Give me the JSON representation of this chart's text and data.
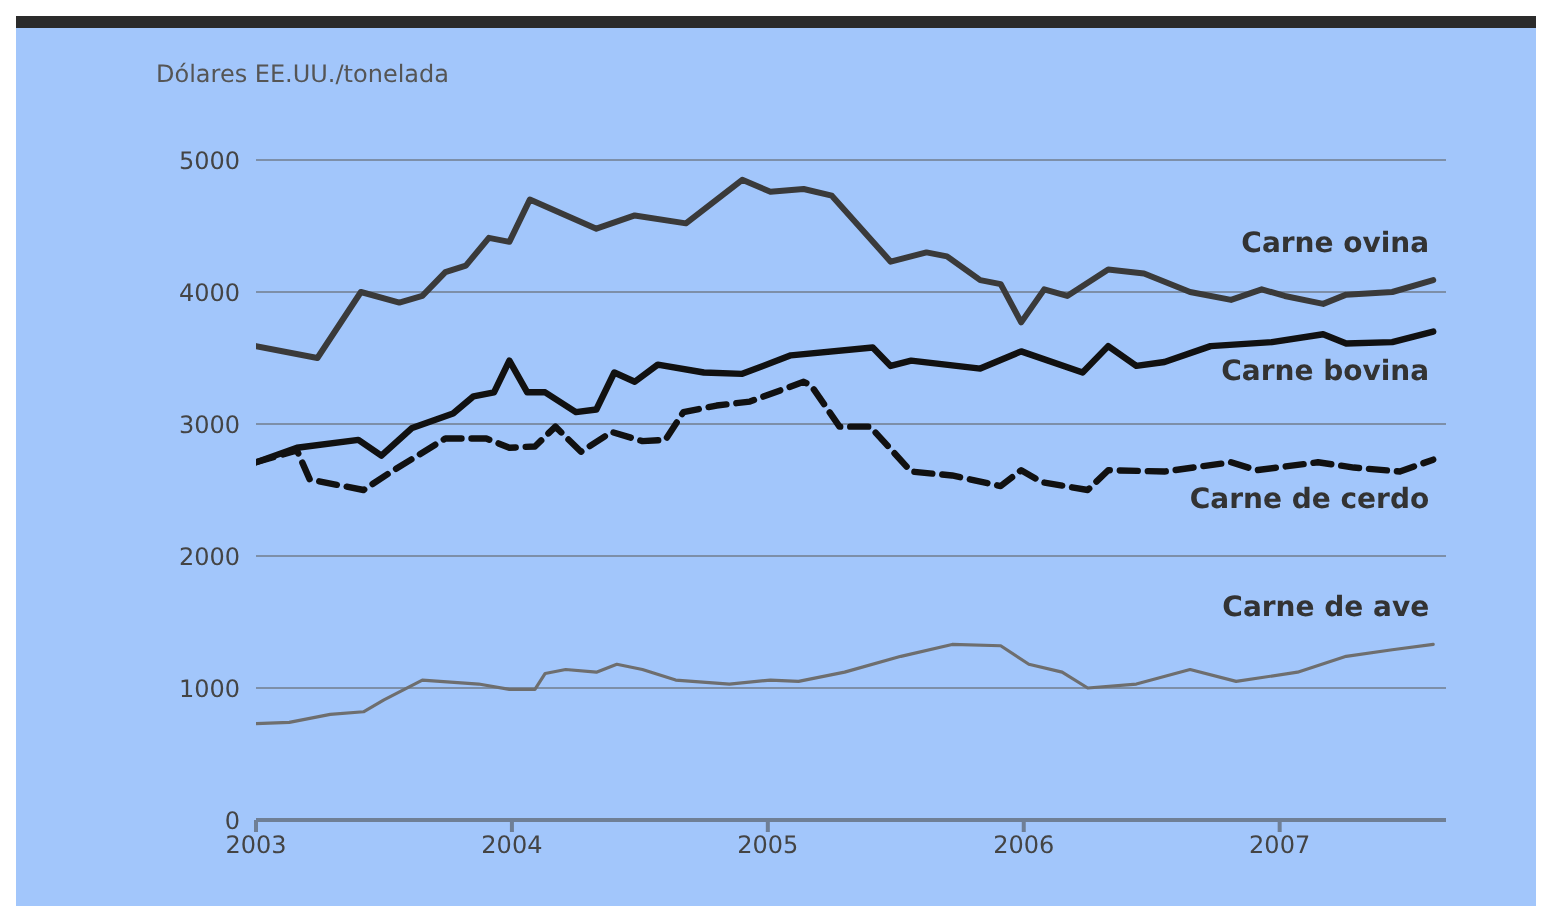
{
  "chart_data": {
    "type": "line",
    "ylabel": "Dólares EE.UU./tonelada",
    "xlim": [
      2003,
      2007.65
    ],
    "xticks": [
      2003,
      2004,
      2005,
      2006,
      2007
    ],
    "ylim": [
      0,
      5000
    ],
    "yticks": [
      0,
      1000,
      2000,
      3000,
      4000,
      5000
    ],
    "grid": "y",
    "marker": "none",
    "series": [
      {
        "name": "Carne ovina",
        "color": "#3a3a3a",
        "line_style": "solid",
        "x": [
          2003.0,
          2003.24,
          2003.41,
          2003.56,
          2003.65,
          2003.74,
          2003.82,
          2003.91,
          2003.99,
          2004.07,
          2004.33,
          2004.48,
          2004.68,
          2004.9,
          2005.01,
          2005.14,
          2005.25,
          2005.48,
          2005.62,
          2005.7,
          2005.83,
          2005.91,
          2005.99,
          2006.08,
          2006.17,
          2006.33,
          2006.47,
          2006.65,
          2006.81,
          2006.93,
          2007.02,
          2007.17,
          2007.26,
          2007.44,
          2007.6
        ],
        "values": [
          3590,
          3500,
          4000,
          3920,
          3970,
          4150,
          4200,
          4410,
          4380,
          4700,
          4480,
          4580,
          4520,
          4850,
          4760,
          4780,
          4730,
          4230,
          4300,
          4270,
          4090,
          4060,
          3770,
          4020,
          3970,
          4170,
          4140,
          4000,
          3940,
          4020,
          3970,
          3910,
          3980,
          4000,
          4090
        ]
      },
      {
        "name": "Carne bovina",
        "color": "#111111",
        "line_style": "solid",
        "x": [
          2003.0,
          2003.16,
          2003.4,
          2003.49,
          2003.61,
          2003.77,
          2003.85,
          2003.93,
          2003.99,
          2004.06,
          2004.13,
          2004.25,
          2004.33,
          2004.4,
          2004.48,
          2004.57,
          2004.75,
          2004.9,
          2005.09,
          2005.41,
          2005.48,
          2005.56,
          2005.83,
          2005.99,
          2006.23,
          2006.33,
          2006.44,
          2006.55,
          2006.73,
          2006.97,
          2007.17,
          2007.26,
          2007.44,
          2007.6
        ],
        "values": [
          2710,
          2820,
          2880,
          2760,
          2970,
          3080,
          3210,
          3240,
          3480,
          3240,
          3240,
          3090,
          3110,
          3390,
          3320,
          3450,
          3390,
          3380,
          3520,
          3580,
          3440,
          3480,
          3420,
          3550,
          3390,
          3590,
          3440,
          3470,
          3590,
          3620,
          3680,
          3610,
          3620,
          3700
        ]
      },
      {
        "name": "Carne de cerdo",
        "color": "#111111",
        "line_style": "dashed",
        "x": [
          2003.0,
          2003.16,
          2003.21,
          2003.42,
          2003.53,
          2003.74,
          2003.9,
          2003.99,
          2004.09,
          2004.17,
          2004.27,
          2004.39,
          2004.51,
          2004.6,
          2004.67,
          2004.8,
          2004.93,
          2005.14,
          2005.17,
          2005.28,
          2005.4,
          2005.56,
          2005.72,
          2005.91,
          2005.99,
          2006.07,
          2006.25,
          2006.33,
          2006.55,
          2006.81,
          2006.91,
          2007.15,
          2007.29,
          2007.47,
          2007.6
        ],
        "values": [
          2710,
          2800,
          2580,
          2500,
          2640,
          2890,
          2890,
          2820,
          2830,
          2980,
          2790,
          2940,
          2870,
          2880,
          3090,
          3140,
          3170,
          3320,
          3290,
          2980,
          2980,
          2640,
          2610,
          2530,
          2650,
          2560,
          2500,
          2650,
          2640,
          2710,
          2650,
          2710,
          2670,
          2640,
          2730
        ]
      },
      {
        "name": "Carne de ave",
        "color": "#6e6e6e",
        "line_style": "solid",
        "x": [
          2003.0,
          2003.13,
          2003.29,
          2003.42,
          2003.5,
          2003.65,
          2003.87,
          2003.99,
          2004.09,
          2004.13,
          2004.21,
          2004.33,
          2004.41,
          2004.51,
          2004.64,
          2004.85,
          2005.01,
          2005.12,
          2005.3,
          2005.52,
          2005.72,
          2005.91,
          2006.02,
          2006.15,
          2006.25,
          2006.44,
          2006.65,
          2006.83,
          2007.07,
          2007.26,
          2007.44,
          2007.6
        ],
        "values": [
          730,
          740,
          800,
          820,
          910,
          1060,
          1030,
          990,
          990,
          1110,
          1140,
          1120,
          1180,
          1140,
          1060,
          1030,
          1060,
          1050,
          1120,
          1240,
          1330,
          1320,
          1180,
          1120,
          1000,
          1030,
          1140,
          1050,
          1120,
          1240,
          1290,
          1330
        ]
      }
    ]
  }
}
